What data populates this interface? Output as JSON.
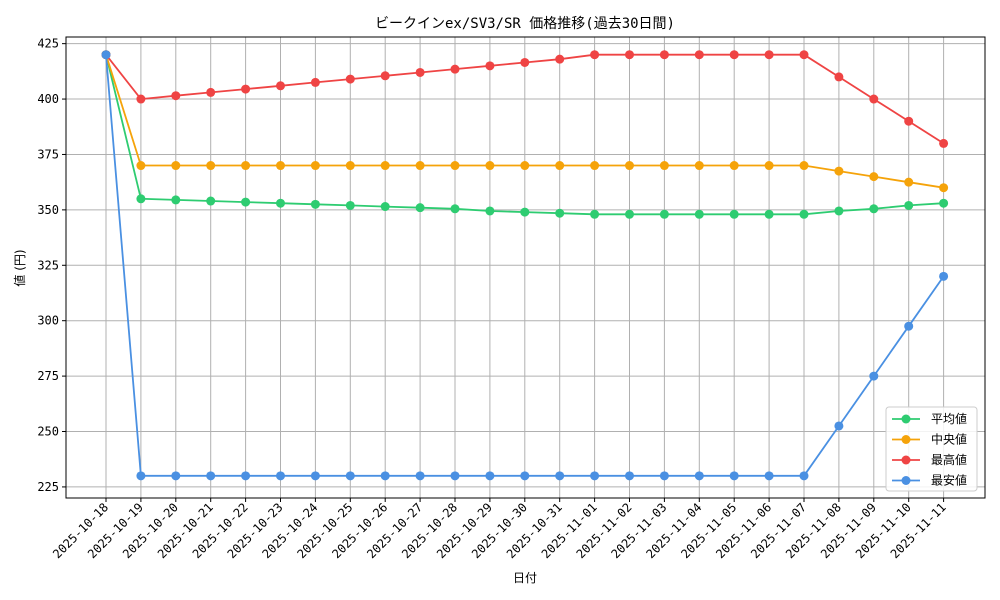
{
  "chart_data": {
    "type": "line",
    "title": "ビークインex/SV3/SR 価格推移(過去30日間)",
    "xlabel": "日付",
    "ylabel": "値 (円)",
    "ylim": [
      220,
      428
    ],
    "yticks": [
      225,
      250,
      275,
      300,
      325,
      350,
      375,
      400,
      425
    ],
    "grid": true,
    "legend_position": "bottom-right",
    "categories": [
      "2025-10-18",
      "2025-10-19",
      "2025-10-20",
      "2025-10-21",
      "2025-10-22",
      "2025-10-23",
      "2025-10-24",
      "2025-10-25",
      "2025-10-26",
      "2025-10-27",
      "2025-10-28",
      "2025-10-29",
      "2025-10-30",
      "2025-10-31",
      "2025-11-01",
      "2025-11-02",
      "2025-11-03",
      "2025-11-04",
      "2025-11-05",
      "2025-11-06",
      "2025-11-07",
      "2025-11-08",
      "2025-11-09",
      "2025-11-10",
      "2025-11-11"
    ],
    "series": [
      {
        "name": "平均値",
        "color": "#2ecc71",
        "values": [
          420,
          355,
          354.5,
          354,
          353.5,
          353,
          352.5,
          352,
          351.5,
          351,
          350.5,
          349.5,
          349,
          348.5,
          348,
          348,
          348,
          348,
          348,
          348,
          348,
          349.5,
          350.5,
          352,
          353
        ]
      },
      {
        "name": "中央値",
        "color": "#f5a30a",
        "values": [
          420,
          370,
          370,
          370,
          370,
          370,
          370,
          370,
          370,
          370,
          370,
          370,
          370,
          370,
          370,
          370,
          370,
          370,
          370,
          370,
          370,
          367.5,
          365,
          362.5,
          360
        ]
      },
      {
        "name": "最高値",
        "color": "#ef4444",
        "values": [
          420,
          400,
          401.5,
          403,
          404.5,
          406,
          407.5,
          409,
          410.5,
          412,
          413.5,
          415,
          416.5,
          418,
          420,
          420,
          420,
          420,
          420,
          420,
          420,
          410,
          400,
          390,
          380
        ]
      },
      {
        "name": "最安値",
        "color": "#4a90e2",
        "values": [
          420,
          230,
          230,
          230,
          230,
          230,
          230,
          230,
          230,
          230,
          230,
          230,
          230,
          230,
          230,
          230,
          230,
          230,
          230,
          230,
          230,
          252.5,
          275,
          297.5,
          320
        ]
      }
    ]
  }
}
